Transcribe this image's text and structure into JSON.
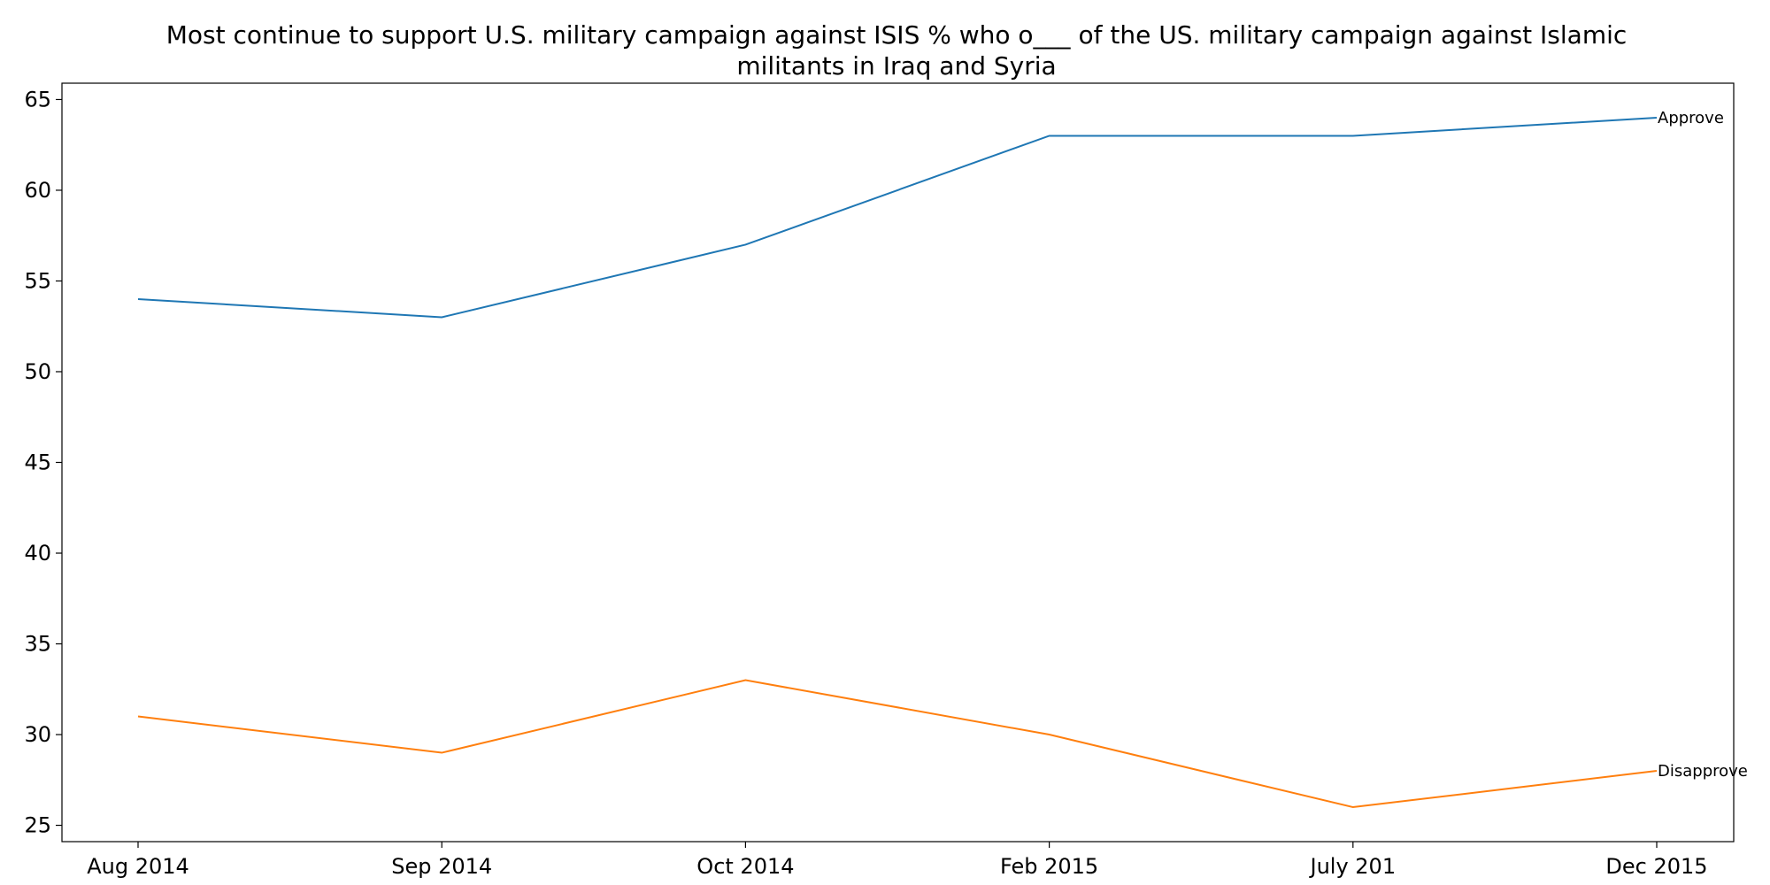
{
  "chart_data": {
    "type": "line",
    "title": "Most continue to support U.S. military campaign against ISIS % who o___ of the US. military campaign against Islamic militants in Iraq and Syria",
    "title_lines": [
      "Most continue to support U.S. military campaign against ISIS % who o___ of the US. military campaign against Islamic",
      "militants in Iraq and Syria"
    ],
    "xlabel": "",
    "ylabel": "",
    "categories": [
      "Aug 2014",
      "Sep 2014",
      "Oct 2014",
      "Feb 2015",
      "July 201",
      "Dec 2015"
    ],
    "ylim": [
      24.1,
      65.9
    ],
    "yticks": [
      25,
      30,
      35,
      40,
      45,
      50,
      55,
      60,
      65
    ],
    "grid": false,
    "legend": "none",
    "series": [
      {
        "name": "Approve",
        "color": "#1f77b4",
        "values": [
          54,
          53,
          57,
          63,
          63,
          64
        ]
      },
      {
        "name": "Disapprove",
        "color": "#ff7f0e",
        "values": [
          31,
          29,
          33,
          30,
          26,
          28
        ]
      }
    ]
  }
}
